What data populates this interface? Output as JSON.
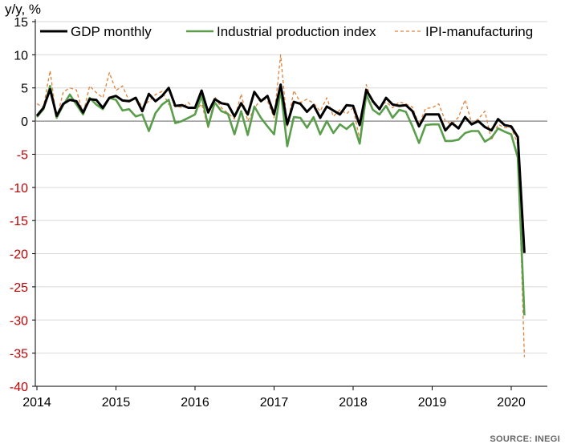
{
  "chart_data": {
    "type": "line",
    "ylabel": "y/y, %",
    "ylim": [
      -40,
      15
    ],
    "y_ticks": [
      15,
      10,
      5,
      0,
      -5,
      -10,
      -15,
      -20,
      -25,
      -30,
      -35,
      -40
    ],
    "x_tick_labels": [
      "2014",
      "2015",
      "2016",
      "2017",
      "2018",
      "2019",
      "2020"
    ],
    "x_tick_years": [
      2014,
      2015,
      2016,
      2017,
      2018,
      2019,
      2020
    ],
    "x_start": 2014.0,
    "x_step_per_month": 0.0833333,
    "grid": true,
    "legend_position": "top",
    "source": "SOURCE: INEGI",
    "colors": {
      "gdp": "#000000",
      "ipi": "#5a9e4b",
      "ipi_mfg": "#e0823a",
      "negative_tick": "#c00000",
      "positive_tick": "#000000",
      "grid": "#d9d9d9",
      "zero_line": "#808080"
    },
    "series": [
      {
        "key": "gdp",
        "name": "GDP monthly",
        "style": "solid-thick",
        "values": [
          0.8,
          2.0,
          4.8,
          0.8,
          2.6,
          3.2,
          3.0,
          1.3,
          3.3,
          3.2,
          2.0,
          3.5,
          3.8,
          3.1,
          3.0,
          3.5,
          1.5,
          4.1,
          3.0,
          3.8,
          5.0,
          2.3,
          2.4,
          2.0,
          2.0,
          4.6,
          1.3,
          3.3,
          2.7,
          2.5,
          0.7,
          2.7,
          1.0,
          4.4,
          3.0,
          3.8,
          1.0,
          5.5,
          -0.5,
          2.9,
          2.6,
          1.4,
          2.4,
          0.5,
          2.2,
          1.6,
          1.0,
          2.4,
          2.3,
          -0.6,
          4.7,
          3.0,
          1.8,
          3.5,
          2.5,
          2.3,
          2.4,
          1.5,
          -0.8,
          1.0,
          1.0,
          1.0,
          -1.4,
          -0.3,
          -1.1,
          0.6,
          -0.5,
          0.0,
          -0.9,
          -1.4,
          0.3,
          -0.6,
          -0.8,
          -2.4,
          -19.9
        ]
      },
      {
        "key": "ipi",
        "name": "Industrial production index",
        "style": "solid-medium",
        "values": [
          0.6,
          1.8,
          5.3,
          0.5,
          2.4,
          4.0,
          2.5,
          1.0,
          3.5,
          2.5,
          1.8,
          3.5,
          3.2,
          1.6,
          1.8,
          0.7,
          1.0,
          -1.5,
          1.2,
          2.5,
          3.2,
          -0.3,
          0.0,
          0.5,
          1.0,
          3.8,
          -0.8,
          2.8,
          1.5,
          1.1,
          -2.0,
          1.5,
          -2.1,
          2.2,
          0.5,
          -0.8,
          -2.0,
          4.8,
          -3.8,
          0.6,
          0.5,
          -1.0,
          0.6,
          -2.0,
          0.0,
          -1.8,
          -0.5,
          -1.2,
          -0.3,
          -3.4,
          4.0,
          1.7,
          1.0,
          2.3,
          0.5,
          1.7,
          1.4,
          -0.8,
          -3.3,
          -0.6,
          -0.5,
          -0.5,
          -3.0,
          -3.0,
          -2.8,
          -1.8,
          -1.5,
          -1.5,
          -3.1,
          -2.5,
          -1.1,
          -1.6,
          -2.0,
          -5.5,
          -29.3
        ]
      },
      {
        "key": "ipi_mfg",
        "name": "IPI-manufacturing",
        "style": "dashed",
        "values": [
          2.6,
          2.1,
          7.6,
          0.3,
          4.4,
          5.0,
          4.7,
          1.1,
          5.3,
          4.3,
          3.5,
          7.3,
          4.6,
          5.3,
          3.0,
          3.7,
          2.1,
          3.0,
          4.0,
          4.5,
          2.5,
          2.3,
          2.0,
          2.8,
          1.5,
          2.6,
          -1.0,
          3.7,
          2.0,
          1.2,
          0.3,
          4.1,
          0.0,
          1.8,
          3.5,
          3.0,
          0.5,
          10.0,
          -0.8,
          4.6,
          2.8,
          3.3,
          2.7,
          1.5,
          3.5,
          0.7,
          1.7,
          1.1,
          2.0,
          -2.8,
          5.5,
          2.6,
          2.1,
          2.9,
          2.0,
          2.9,
          2.6,
          2.1,
          -0.5,
          1.9,
          2.0,
          2.6,
          0.0,
          -0.5,
          0.6,
          3.2,
          -0.3,
          0.3,
          1.5,
          -2.9,
          -0.5,
          -1.0,
          -1.0,
          -3.5,
          -35.6
        ]
      }
    ]
  }
}
